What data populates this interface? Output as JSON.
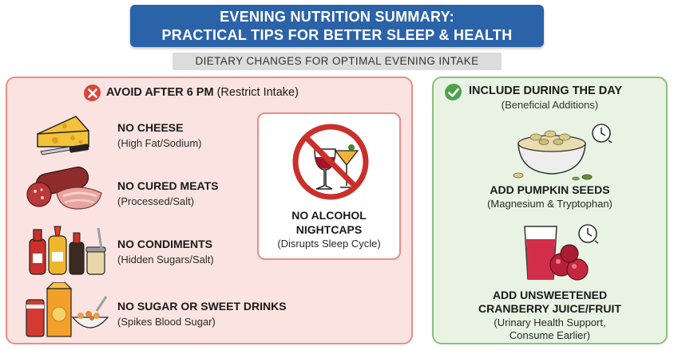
{
  "header": {
    "title_line1": "EVENING NUTRITION SUMMARY:",
    "title_line2": "PRACTICAL TIPS FOR BETTER SLEEP & HEALTH",
    "subtitle": "DIETARY CHANGES FOR OPTIMAL EVENING INTAKE"
  },
  "avoid": {
    "heading_bold": "AVOID AFTER 6 PM",
    "heading_rest": "(Restrict Intake)",
    "items": [
      {
        "title": "NO CHEESE",
        "sub": "(High Fat/Sodium)",
        "icon": "cheese-icon"
      },
      {
        "title": "NO CURED MEATS",
        "sub": "(Processed/Salt)",
        "icon": "cured-meat-icon"
      },
      {
        "title": "NO CONDIMENTS",
        "sub": "(Hidden Sugars/Salt)",
        "icon": "condiments-icon"
      },
      {
        "title": "NO SUGAR OR SWEET DRINKS",
        "sub": "(Spikes Blood Sugar)",
        "icon": "sweet-drinks-icon"
      }
    ],
    "alcohol": {
      "title_line1": "NO ALCOHOL",
      "title_line2": "NIGHTCAPS",
      "sub": "(Disrupts Sleep Cycle)",
      "icon": "no-alcohol-icon"
    }
  },
  "include": {
    "heading": "INCLUDE DURING THE DAY",
    "heading_sub": "(Beneficial Additions)",
    "items": [
      {
        "title_lines": [
          "ADD PUMPKIN SEEDS"
        ],
        "sub_lines": [
          "(Magnesium & Tryptophan)"
        ],
        "icon": "pumpkin-seeds-icon"
      },
      {
        "title_lines": [
          "ADD UNSWEETENED",
          "CRANBERRY JUICE/FRUIT"
        ],
        "sub_lines": [
          "(Urinary Health Support,",
          "Consume Earlier)"
        ],
        "icon": "cranberry-icon"
      }
    ]
  },
  "colors": {
    "title_bg": "#2b63a8",
    "avoid_bg": "#fae3e0",
    "avoid_border": "#e58f86",
    "include_bg": "#e9f3e4",
    "include_border": "#8bc07a"
  }
}
